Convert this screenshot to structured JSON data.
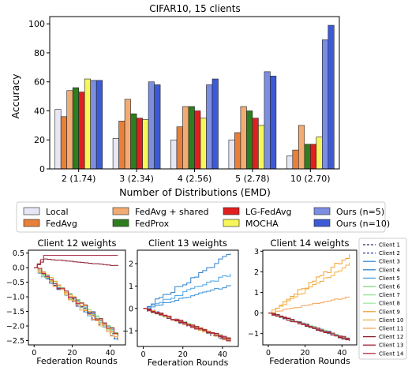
{
  "chart_data": [
    {
      "type": "bar",
      "title": "CIFAR10, 15 clients",
      "xlabel": "Number of Distributions (EMD)",
      "ylabel": "Accuracy",
      "ylim": [
        0,
        105
      ],
      "yticks": [
        0,
        20,
        40,
        60,
        80,
        100
      ],
      "grid": false,
      "categories": [
        "2 (1.74)",
        "3 (2.34)",
        "4 (2.56)",
        "5 (2.78)",
        "10 (2.70)"
      ],
      "series": [
        {
          "name": "Local",
          "color": "#e6e6f5",
          "values": [
            41,
            21,
            20,
            20,
            9
          ]
        },
        {
          "name": "FedAvg",
          "color": "#e8803a",
          "values": [
            36,
            33,
            29,
            25,
            13
          ]
        },
        {
          "name": "FedAvg + shared",
          "color": "#f2ab72",
          "values": [
            54,
            48,
            43,
            43,
            30
          ]
        },
        {
          "name": "FedProx",
          "color": "#2e7d1f",
          "values": [
            56,
            38,
            43,
            40,
            17
          ]
        },
        {
          "name": "LG-FedAvg",
          "color": "#e02020",
          "values": [
            53,
            35,
            40,
            35,
            17
          ]
        },
        {
          "name": "MOCHA",
          "color": "#f6f65a",
          "values": [
            62,
            34,
            35,
            30,
            22
          ]
        },
        {
          "name": "Ours (n=5)",
          "color": "#7b8ee0",
          "values": [
            61,
            60,
            58,
            67,
            89
          ]
        },
        {
          "name": "Ours (n=10)",
          "color": "#3c5ad6",
          "values": [
            61,
            58,
            62,
            64,
            99
          ]
        }
      ],
      "legend_placement": "below"
    },
    {
      "type": "line",
      "title": "Client 12 weights",
      "xlabel": "Federation Rounds",
      "xlim": [
        -3,
        48
      ],
      "ylim": [
        -2.65,
        0.6
      ],
      "xticks": [
        0,
        20,
        40
      ],
      "yticks": [
        0.5,
        0.0,
        -0.5,
        -1.0,
        -1.5,
        -2.0,
        -2.5
      ],
      "ytick_labels": [
        "0.5",
        "0.0",
        "−0.5",
        "−1.0",
        "−1.5",
        "−2.0",
        "−2.5"
      ],
      "series": [
        {
          "name": "Client 1",
          "values": [
            [
              0,
              0
            ],
            [
              44,
              -2.45
            ]
          ]
        },
        {
          "name": "Client 2",
          "values": [
            [
              0,
              0
            ],
            [
              44,
              -2.5
            ]
          ]
        },
        {
          "name": "Client 3",
          "values": [
            [
              0,
              0
            ],
            [
              44,
              -2.35
            ]
          ]
        },
        {
          "name": "Client 4",
          "values": [
            [
              0,
              0
            ],
            [
              44,
              -2.42
            ]
          ]
        },
        {
          "name": "Client 5",
          "values": [
            [
              0,
              0
            ],
            [
              44,
              -2.48
            ]
          ]
        },
        {
          "name": "Client 6",
          "values": [
            [
              0,
              0
            ],
            [
              44,
              -2.3
            ]
          ]
        },
        {
          "name": "Client 7",
          "values": [
            [
              0,
              0
            ],
            [
              44,
              -2.38
            ]
          ]
        },
        {
          "name": "Client 8",
          "values": [
            [
              0,
              0
            ],
            [
              44,
              -2.44
            ]
          ]
        },
        {
          "name": "Client 9",
          "values": [
            [
              0,
              0
            ],
            [
              44,
              -2.4
            ]
          ]
        },
        {
          "name": "Client 10",
          "values": [
            [
              0,
              0
            ],
            [
              44,
              -2.36
            ]
          ]
        },
        {
          "name": "Client 11",
          "values": [
            [
              0,
              0
            ],
            [
              44,
              -2.5
            ]
          ]
        },
        {
          "name": "Client 12",
          "values": [
            [
              0,
              0
            ],
            [
              5,
              0.3
            ],
            [
              44,
              0.06
            ]
          ]
        },
        {
          "name": "Client 13",
          "values": [
            [
              0,
              0
            ],
            [
              5,
              0.42
            ],
            [
              44,
              0.42
            ]
          ]
        },
        {
          "name": "Client 14",
          "values": [
            [
              0,
              0
            ],
            [
              44,
              -2.33
            ]
          ]
        }
      ]
    },
    {
      "type": "line",
      "title": "Client 13 weights",
      "xlabel": "Federation Rounds",
      "xlim": [
        -3,
        48
      ],
      "ylim": [
        -1.7,
        2.6
      ],
      "xticks": [
        0,
        20,
        40
      ],
      "yticks": [
        2,
        1,
        0,
        -1
      ],
      "ytick_labels": [
        "2",
        "1",
        "0",
        "−1"
      ],
      "series": [
        {
          "name": "Client 1",
          "values": [
            [
              0,
              0
            ],
            [
              44,
              -1.45
            ]
          ]
        },
        {
          "name": "Client 2",
          "values": [
            [
              0,
              0
            ],
            [
              44,
              -1.5
            ]
          ]
        },
        {
          "name": "Client 3",
          "values": [
            [
              0,
              0
            ],
            [
              44,
              1.05
            ]
          ]
        },
        {
          "name": "Client 4",
          "values": [
            [
              0,
              0
            ],
            [
              44,
              2.45
            ]
          ]
        },
        {
          "name": "Client 5",
          "values": [
            [
              0,
              0
            ],
            [
              44,
              1.55
            ]
          ]
        },
        {
          "name": "Client 6",
          "values": [
            [
              0,
              0
            ],
            [
              44,
              -1.42
            ]
          ]
        },
        {
          "name": "Client 7",
          "values": [
            [
              0,
              0
            ],
            [
              44,
              -1.48
            ]
          ]
        },
        {
          "name": "Client 8",
          "values": [
            [
              0,
              0
            ],
            [
              44,
              -1.4
            ]
          ]
        },
        {
          "name": "Client 9",
          "values": [
            [
              0,
              0
            ],
            [
              44,
              -1.46
            ]
          ]
        },
        {
          "name": "Client 10",
          "values": [
            [
              0,
              0
            ],
            [
              44,
              -1.44
            ]
          ]
        },
        {
          "name": "Client 11",
          "values": [
            [
              0,
              0
            ],
            [
              44,
              -1.5
            ]
          ]
        },
        {
          "name": "Client 12",
          "values": [
            [
              0,
              0
            ],
            [
              44,
              -1.43
            ]
          ]
        },
        {
          "name": "Client 13",
          "values": [
            [
              0,
              0
            ],
            [
              44,
              -1.47
            ]
          ]
        },
        {
          "name": "Client 14",
          "values": [
            [
              0,
              0
            ],
            [
              44,
              -1.41
            ]
          ]
        }
      ]
    },
    {
      "type": "line",
      "title": "Client 14 weights",
      "xlabel": "Federation Rounds",
      "xlim": [
        -3,
        48
      ],
      "ylim": [
        -1.55,
        3.05
      ],
      "xticks": [
        0,
        20,
        40
      ],
      "yticks": [
        3,
        2,
        1,
        0,
        -1
      ],
      "ytick_labels": [
        "3",
        "2",
        "1",
        "0",
        "−1"
      ],
      "series": [
        {
          "name": "Client 1",
          "values": [
            [
              0,
              0
            ],
            [
              44,
              -1.3
            ]
          ]
        },
        {
          "name": "Client 2",
          "values": [
            [
              0,
              0
            ],
            [
              44,
              -1.35
            ]
          ]
        },
        {
          "name": "Client 3",
          "values": [
            [
              0,
              0
            ],
            [
              44,
              -1.28
            ]
          ]
        },
        {
          "name": "Client 4",
          "values": [
            [
              0,
              0
            ],
            [
              44,
              -1.32
            ]
          ]
        },
        {
          "name": "Client 5",
          "values": [
            [
              0,
              0
            ],
            [
              44,
              -1.3
            ]
          ]
        },
        {
          "name": "Client 6",
          "values": [
            [
              0,
              0
            ],
            [
              44,
              -1.33
            ]
          ]
        },
        {
          "name": "Client 7",
          "values": [
            [
              0,
              0
            ],
            [
              44,
              -1.29
            ]
          ]
        },
        {
          "name": "Client 8",
          "values": [
            [
              0,
              0
            ],
            [
              44,
              -1.31
            ]
          ]
        },
        {
          "name": "Client 9",
          "values": [
            [
              0,
              0
            ],
            [
              44,
              2.85
            ]
          ]
        },
        {
          "name": "Client 10",
          "values": [
            [
              0,
              0
            ],
            [
              44,
              2.45
            ]
          ]
        },
        {
          "name": "Client 11",
          "values": [
            [
              0,
              0
            ],
            [
              44,
              0.8
            ]
          ]
        },
        {
          "name": "Client 12",
          "values": [
            [
              0,
              0
            ],
            [
              44,
              -1.34
            ]
          ]
        },
        {
          "name": "Client 13",
          "values": [
            [
              0,
              0
            ],
            [
              44,
              -1.3
            ]
          ]
        },
        {
          "name": "Client 14",
          "values": [
            [
              0,
              0
            ],
            [
              44,
              -1.36
            ]
          ]
        }
      ]
    }
  ],
  "client_legend": [
    {
      "name": "Client 1",
      "color": "#1f2a6b",
      "dash": true
    },
    {
      "name": "Client 2",
      "color": "#2a3a9e",
      "dash": true
    },
    {
      "name": "Client 3",
      "color": "#3a8fd6",
      "dash": false
    },
    {
      "name": "Client 4",
      "color": "#2f7fc9",
      "dash": false
    },
    {
      "name": "Client 5",
      "color": "#4aa3e8",
      "dash": false
    },
    {
      "name": "Client 6",
      "color": "#7fd67f",
      "dash": false
    },
    {
      "name": "Client 7",
      "color": "#8fe38f",
      "dash": false
    },
    {
      "name": "Client 8",
      "color": "#a2e8a2",
      "dash": false
    },
    {
      "name": "Client 9",
      "color": "#f0a030",
      "dash": false
    },
    {
      "name": "Client 10",
      "color": "#f3b045",
      "dash": false
    },
    {
      "name": "Client 11",
      "color": "#f5a55a",
      "dash": false
    },
    {
      "name": "Client 12",
      "color": "#8b1a2b",
      "dash": false
    },
    {
      "name": "Client 13",
      "color": "#a01f35",
      "dash": false
    },
    {
      "name": "Client 14",
      "color": "#b32a40",
      "dash": false
    }
  ]
}
